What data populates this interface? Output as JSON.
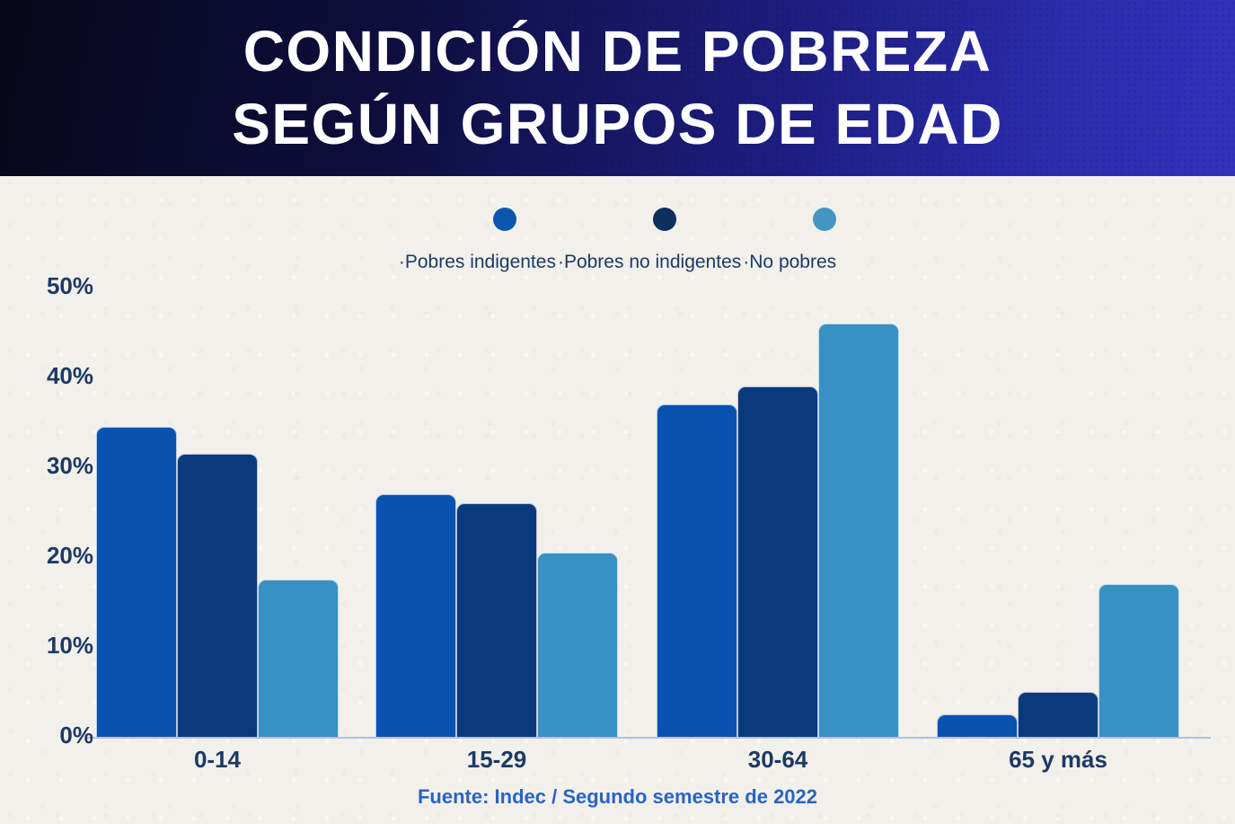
{
  "header": {
    "title_line1": "CONDICIÓN DE POBREZA",
    "title_line2": "SEGÚN GRUPOS DE EDAD"
  },
  "legend": {
    "items": [
      {
        "label": "·Pobres indigentes",
        "dot_color": "#0B55AF"
      },
      {
        "label": "·Pobres no indigentes",
        "dot_color": "#0E2F5D"
      },
      {
        "label": "·No pobres",
        "dot_color": "#4495C4"
      }
    ]
  },
  "chart_data": {
    "type": "bar",
    "title": "CONDICIÓN DE POBREZA SEGÚN GRUPOS DE EDAD",
    "categories": [
      "0-14",
      "15-29",
      "30-64",
      "65 y más"
    ],
    "series": [
      {
        "name": "Pobres indigentes",
        "color": "#0A52B0",
        "values": [
          34.5,
          27.0,
          37.0,
          2.5
        ]
      },
      {
        "name": "Pobres no indigentes",
        "color": "#0A3A7C",
        "values": [
          31.5,
          26.0,
          39.0,
          5.0
        ]
      },
      {
        "name": "No pobres",
        "color": "#3990C2",
        "values": [
          17.5,
          20.5,
          46.0,
          17.0
        ]
      }
    ],
    "y_ticks": [
      "0%",
      "10%",
      "20%",
      "30%",
      "40%",
      "50%"
    ],
    "ylim": [
      0,
      50
    ],
    "xlabel": "",
    "ylabel": "",
    "grid": false,
    "legend_position": "top",
    "source": "Fuente: Indec / Segundo semestre de 2022"
  },
  "colors": {
    "background": "#F2F0EB",
    "header_gradient_start": "#07071A",
    "header_gradient_end": "#3133BC",
    "axis_line": "#B3BEE0",
    "label_text": "#1D3964",
    "footer_text": "#2B63C3"
  }
}
